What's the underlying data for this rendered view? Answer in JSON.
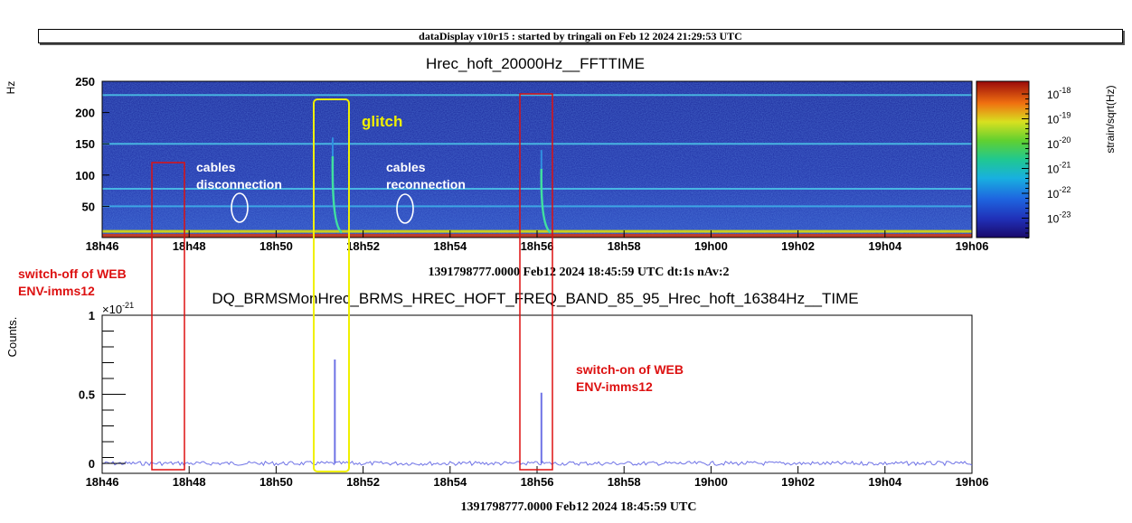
{
  "header": {
    "text": "dataDisplay v10r15 : started by tringali on Feb 12 2024 21:29:53 UTC"
  },
  "chart_data": [
    {
      "type": "heatmap",
      "title": "Hrec_hoft_20000Hz__FFTTIME",
      "ylabel": "Hz",
      "xlabel": "1391798777.0000 Feb12 2024 18:45:59 UTC dt:1s nAv:2",
      "x_tick_labels": [
        "18h46",
        "18h48",
        "18h50",
        "18h52",
        "18h54",
        "18h56",
        "18h58",
        "19h00",
        "19h02",
        "19h04",
        "19h06"
      ],
      "y_tick_labels": [
        "250",
        "200",
        "150",
        "100",
        "50"
      ],
      "ylim": [
        0,
        250
      ],
      "colorbar": {
        "label": "strain/sqrt(Hz)",
        "scale": "log",
        "tick_labels": [
          {
            "base": "10",
            "exp": "-18"
          },
          {
            "base": "10",
            "exp": "-19"
          },
          {
            "base": "10",
            "exp": "-20"
          },
          {
            "base": "10",
            "exp": "-21"
          },
          {
            "base": "10",
            "exp": "-22"
          },
          {
            "base": "10",
            "exp": "-23"
          }
        ]
      },
      "lines_hz": [
        10,
        50,
        78,
        150,
        228
      ],
      "transients": [
        {
          "time": "18h51.3",
          "extent_hz": 130
        },
        {
          "time": "18h56.1",
          "extent_hz": 110
        }
      ],
      "annotations": {
        "cables_disconnection": [
          "cables",
          "disconnection"
        ],
        "cables_reconnection": [
          "cables",
          "reconnection"
        ],
        "glitch": "glitch"
      }
    },
    {
      "type": "line",
      "title": "DQ_BRMSMonHrec_BRMS_HREC_HOFT_FREQ_BAND_85_95_Hrec_hoft_16384Hz__TIME",
      "ylabel": "Counts.",
      "xlabel": "1391798777.0000 Feb12 2024 18:45:59 UTC",
      "y_multiplier": {
        "base": "×10",
        "exp": "-21"
      },
      "x_tick_labels": [
        "18h46",
        "18h48",
        "18h50",
        "18h52",
        "18h54",
        "18h56",
        "18h58",
        "19h00",
        "19h02",
        "19h04",
        "19h06"
      ],
      "y_tick_labels": [
        "1",
        "0.5",
        "0"
      ],
      "xlim_min": [
        0,
        20
      ],
      "ylim": [
        0,
        1
      ],
      "baseline": 0.05,
      "spikes": [
        {
          "x_min": 5.35,
          "y": 0.72
        },
        {
          "x_min": 10.1,
          "y": 0.51
        }
      ],
      "color": "#6f73e6"
    }
  ],
  "overlays": {
    "switch_off": [
      "switch-off of WEB",
      "ENV-imms12"
    ],
    "switch_on": [
      "switch-on of WEB",
      "ENV-imms12"
    ],
    "colors": {
      "red": "#dd1111",
      "yellow": "#f0f000"
    }
  }
}
